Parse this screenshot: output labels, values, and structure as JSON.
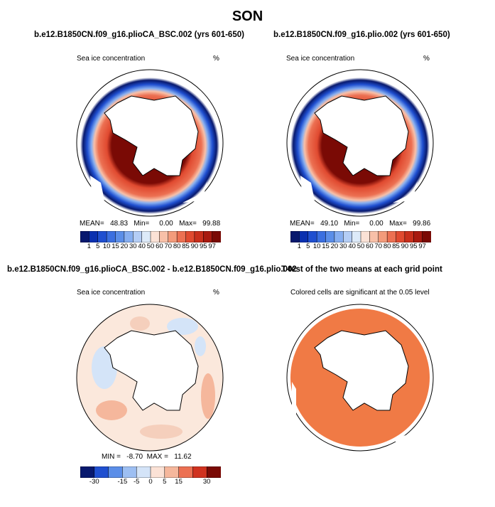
{
  "figure": {
    "title": "SON"
  },
  "panels": {
    "top_left": {
      "title": "b.e12.B1850CN.f09_g16.plioCA_BSC.002 (yrs 601-650)",
      "left_label": "Sea ice concentration",
      "right_label": "%",
      "stats": "MEAN=   48.83   Min=     0.00   Max=   99.88",
      "colorbar_labels": [
        "1",
        "5",
        "10",
        "15",
        "20",
        "30",
        "40",
        "50",
        "60",
        "70",
        "80",
        "85",
        "90",
        "95",
        "97"
      ]
    },
    "top_right": {
      "title": "b.e12.B1850CN.f09_g16.plio.002 (yrs 601-650)",
      "left_label": "Sea ice concentration",
      "right_label": "%",
      "stats": "MEAN=   49.10   Min=     0.00   Max=   99.86",
      "colorbar_labels": [
        "1",
        "5",
        "10",
        "15",
        "20",
        "30",
        "40",
        "50",
        "60",
        "70",
        "80",
        "85",
        "90",
        "95",
        "97"
      ]
    },
    "bottom_left": {
      "title": "b.e12.B1850CN.f09_g16.plioCA_BSC.002 - b.e12.B1850CN.f09_g16.plio.002",
      "left_label": "Sea ice concentration",
      "right_label": "%",
      "stats": "MIN =   -8.70  MAX =   11.62",
      "colorbar_labels": [
        "-30",
        "-15",
        "-5",
        "0",
        "5",
        "15",
        "30"
      ]
    },
    "bottom_right": {
      "title": "T-test of the two means at each grid point",
      "subtitle": "Colored cells are significant at the 0.05 level"
    }
  },
  "colors": {
    "ice_scale": [
      "#08196e",
      "#0a30b0",
      "#1f4fd0",
      "#3b6fe0",
      "#5b8ee8",
      "#86aef0",
      "#b4cdf5",
      "#ddeaf9",
      "#fbe2d6",
      "#f8c0a8",
      "#f39b7b",
      "#ec7052",
      "#e04a30",
      "#c82f1c",
      "#a81a10",
      "#7a0a05"
    ],
    "diff_scale": [
      "#08196e",
      "#1f4fd0",
      "#5b8ee8",
      "#9dbff2",
      "#d4e4f8",
      "#fbe2d6",
      "#f5b79c",
      "#ec7052",
      "#d0321f",
      "#7a0a05"
    ],
    "significant": "#f07a45",
    "land": "#ffffff"
  }
}
